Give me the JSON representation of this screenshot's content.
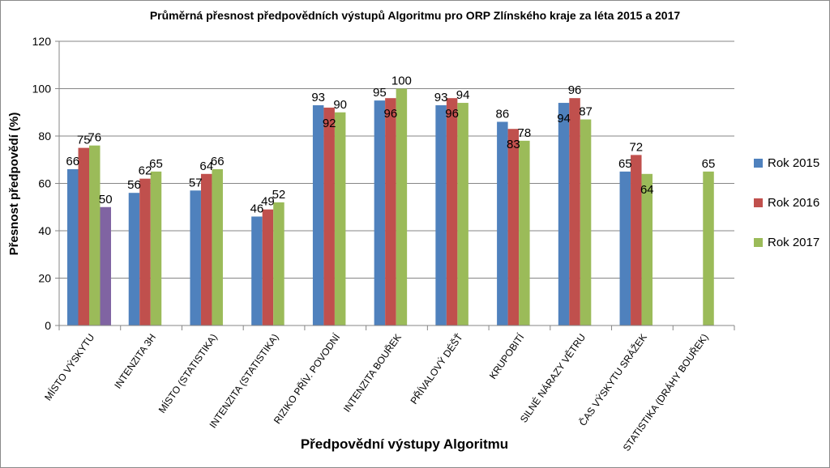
{
  "chart_data": {
    "type": "bar",
    "title": "Průměrná přesnost předpovědních výstupů Algoritmu pro ORP Zlínského kraje za léta 2015 a 2017",
    "xlabel": "Předpovědní výstupy Algoritmu",
    "ylabel": "Přesnost předpovědí (%)",
    "ylim": [
      0,
      120
    ],
    "yticks": [
      0,
      20,
      40,
      60,
      80,
      100,
      120
    ],
    "grid": true,
    "legend_position": "right",
    "categories": [
      "MÍSTO VÝSKYTU",
      "INTENZITA 3H",
      "MÍSTO (STATISTIKA)",
      "INTENZITA (STATISTIKA)",
      "RIZIKO PŘÍV. POVODNÍ",
      "INTENZITA BOUŘEK",
      "PŘÍVALOVÝ DÉŠŤ",
      "KRUPOBITÍ",
      "SILNÉ NÁRAZY VĚTRU",
      "ČAS VÝSKYTU SRÁŽEK",
      "STATISTIKA (DRÁHY BOUŘEK)"
    ],
    "series": [
      {
        "name": "Rok 2015",
        "color": "#4f81bd",
        "values": [
          66,
          56,
          57,
          46,
          93,
          95,
          93,
          86,
          94,
          65,
          null
        ]
      },
      {
        "name": "Rok 2016",
        "color": "#c0504d",
        "values": [
          75,
          62,
          64,
          49,
          92,
          96,
          96,
          83,
          96,
          72,
          null
        ]
      },
      {
        "name": "Rok 2017",
        "color": "#9bbb59",
        "values": [
          76,
          65,
          66,
          52,
          90,
          100,
          94,
          78,
          87,
          64,
          65
        ]
      }
    ],
    "extra_bars": [
      {
        "category_index": 0,
        "value": 50,
        "color": "#8064a2"
      }
    ],
    "data_labels": [
      {
        "text": "66",
        "series": 0,
        "cat": 0
      },
      {
        "text": "75",
        "series": 1,
        "cat": 0
      },
      {
        "text": "76",
        "series": 2,
        "cat": 0
      },
      {
        "text": "50",
        "series": 3,
        "cat": 0
      },
      {
        "text": "56",
        "series": 0,
        "cat": 1
      },
      {
        "text": "62",
        "series": 1,
        "cat": 1
      },
      {
        "text": "65",
        "series": 2,
        "cat": 1
      },
      {
        "text": "57",
        "series": 0,
        "cat": 2
      },
      {
        "text": "64",
        "series": 1,
        "cat": 2
      },
      {
        "text": "66",
        "series": 2,
        "cat": 2
      },
      {
        "text": "46",
        "series": 0,
        "cat": 3
      },
      {
        "text": "49",
        "series": 1,
        "cat": 3
      },
      {
        "text": "52",
        "series": 2,
        "cat": 3
      },
      {
        "text": "93",
        "series": 0,
        "cat": 4
      },
      {
        "text": "92",
        "series": 1,
        "cat": 4,
        "inside": true
      },
      {
        "text": "90",
        "series": 2,
        "cat": 4
      },
      {
        "text": "95",
        "series": 0,
        "cat": 5
      },
      {
        "text": "96",
        "series": 1,
        "cat": 5,
        "inside": true
      },
      {
        "text": "100",
        "series": 2,
        "cat": 5
      },
      {
        "text": "93",
        "series": 0,
        "cat": 6
      },
      {
        "text": "96",
        "series": 1,
        "cat": 6,
        "inside": true
      },
      {
        "text": "94",
        "series": 2,
        "cat": 6
      },
      {
        "text": "86",
        "series": 0,
        "cat": 7
      },
      {
        "text": "83",
        "series": 1,
        "cat": 7,
        "inside": true
      },
      {
        "text": "78",
        "series": 2,
        "cat": 7
      },
      {
        "text": "94",
        "series": 0,
        "cat": 8,
        "inside": true
      },
      {
        "text": "96",
        "series": 1,
        "cat": 8
      },
      {
        "text": "87",
        "series": 2,
        "cat": 8
      },
      {
        "text": "65",
        "series": 0,
        "cat": 9
      },
      {
        "text": "72",
        "series": 1,
        "cat": 9
      },
      {
        "text": "64",
        "series": 2,
        "cat": 9,
        "inside": true
      },
      {
        "text": "65",
        "series": 2,
        "cat": 10
      }
    ]
  }
}
